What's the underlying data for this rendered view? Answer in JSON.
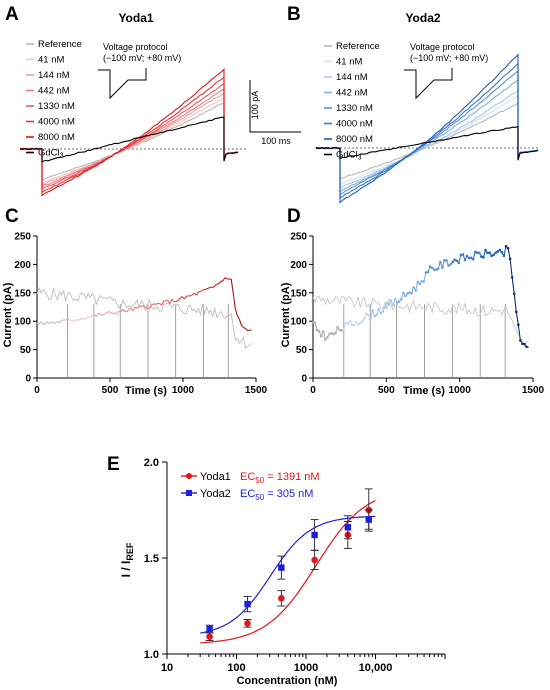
{
  "panel_labels": {
    "A": "A",
    "B": "B",
    "C": "C",
    "D": "D",
    "E": "E"
  },
  "colors": {
    "yoda1_dark": "#e3141b",
    "yoda1_light": "#f6b9bb",
    "yoda2_dark": "#1f5fb8",
    "yoda2_light": "#bcd6f2",
    "reference": "#b7b7b7",
    "gdcl3": "#000000",
    "fit_yoda1": "#e3141b",
    "fit_yoda2": "#1d1de0"
  },
  "chart_data": [
    {
      "panel": "A",
      "type": "line",
      "title": "Yoda1",
      "legend": [
        {
          "label": "Reference",
          "color": "#b7b7b7"
        },
        {
          "label": "41 nM",
          "color": "#f6c4c5"
        },
        {
          "label": "144 nM",
          "color": "#f2a1a3"
        },
        {
          "label": "442 nM",
          "color": "#ee7f82"
        },
        {
          "label": "1330 nM",
          "color": "#ea5b5f"
        },
        {
          "label": "4000 nM",
          "color": "#e6373c"
        },
        {
          "label": "8000 nM",
          "color": "#e3141b"
        },
        {
          "label": "GdCl3",
          "color": "#000000",
          "subscript": "3",
          "base": "GdCl"
        }
      ],
      "protocol_title": "Voltage protocol",
      "protocol_range": "(−100 mV; +80 mV)",
      "scalebar_y": "100 pA",
      "scalebar_x": "100 ms",
      "end_currents_pA": {
        "Reference": 145,
        "41 nM": 160,
        "144 nM": 175,
        "442 nM": 188,
        "1330 nM": 205,
        "4000 nM": 225,
        "8000 nM": 250,
        "GdCl3": 100
      },
      "start_currents_pA": {
        "Reference": -95,
        "41 nM": -105,
        "144 nM": -112,
        "442 nM": -118,
        "1330 nM": -125,
        "4000 nM": -135,
        "8000 nM": -145,
        "GdCl3": -40
      }
    },
    {
      "panel": "B",
      "type": "line",
      "title": "Yoda2",
      "legend": [
        {
          "label": "Reference",
          "color": "#b7b7b7"
        },
        {
          "label": "41 nM",
          "color": "#cfe0f5"
        },
        {
          "label": "144 nM",
          "color": "#a9c8ec"
        },
        {
          "label": "442 nM",
          "color": "#85afe0"
        },
        {
          "label": "1330 nM",
          "color": "#5b92d3"
        },
        {
          "label": "4000 nM",
          "color": "#3a77c4"
        },
        {
          "label": "8000 nM",
          "color": "#1f5fb8"
        },
        {
          "label": "GdCl3",
          "color": "#000000",
          "subscript": "3",
          "base": "GdCl"
        }
      ],
      "protocol_title": "Voltage protocol",
      "protocol_range": "(−100 mV; +80 mV)",
      "end_currents_pA": {
        "Reference": 125,
        "41 nM": 145,
        "144 nM": 160,
        "442 nM": 190,
        "1330 nM": 215,
        "4000 nM": 235,
        "8000 nM": 260,
        "GdCl3": 60
      },
      "start_currents_pA": {
        "Reference": -85,
        "41 nM": -100,
        "144 nM": -110,
        "442 nM": -120,
        "1330 nM": -128,
        "4000 nM": -138,
        "8000 nM": -150,
        "GdCl3": -28
      }
    },
    {
      "panel": "C",
      "type": "line",
      "xlabel": "Time (s)",
      "ylabel": "Current (pA)",
      "xlim": [
        0,
        1500
      ],
      "ylim": [
        0,
        250
      ],
      "xticks": [
        "0",
        "500",
        "1000",
        "1500"
      ],
      "yticks": [
        "0",
        "50",
        "100",
        "150",
        "200",
        "250"
      ],
      "application_times_s": [
        210,
        390,
        570,
        760,
        950,
        1140,
        1310
      ],
      "outward_pA": [
        [
          0,
          95
        ],
        [
          200,
          100
        ],
        [
          400,
          110
        ],
        [
          600,
          118
        ],
        [
          800,
          128
        ],
        [
          1000,
          140
        ],
        [
          1200,
          158
        ],
        [
          1260,
          170
        ],
        [
          1300,
          178
        ],
        [
          1330,
          172
        ],
        [
          1360,
          120
        ],
        [
          1400,
          92
        ],
        [
          1450,
          82
        ],
        [
          1480,
          82
        ]
      ],
      "inward_pA": [
        [
          0,
          150
        ],
        [
          200,
          145
        ],
        [
          400,
          138
        ],
        [
          600,
          130
        ],
        [
          800,
          128
        ],
        [
          1000,
          122
        ],
        [
          1200,
          118
        ],
        [
          1260,
          115
        ],
        [
          1300,
          113
        ],
        [
          1330,
          110
        ],
        [
          1360,
          75
        ],
        [
          1400,
          65
        ],
        [
          1450,
          60
        ],
        [
          1480,
          60
        ]
      ]
    },
    {
      "panel": "D",
      "type": "line",
      "xlabel": "Time (s)",
      "ylabel": "Current (pA)",
      "xlim": [
        0,
        1500
      ],
      "ylim": [
        0,
        250
      ],
      "xticks": [
        "0",
        "500",
        "1000",
        "1500"
      ],
      "yticks": [
        "0",
        "50",
        "100",
        "150",
        "200",
        "250"
      ],
      "application_times_s": [
        210,
        390,
        570,
        760,
        950,
        1140,
        1310
      ],
      "outward_pA": [
        [
          0,
          95
        ],
        [
          50,
          80
        ],
        [
          100,
          72
        ],
        [
          200,
          88
        ],
        [
          300,
          100
        ],
        [
          400,
          112
        ],
        [
          500,
          125
        ],
        [
          600,
          140
        ],
        [
          700,
          160
        ],
        [
          800,
          190
        ],
        [
          900,
          202
        ],
        [
          1000,
          210
        ],
        [
          1100,
          215
        ],
        [
          1200,
          220
        ],
        [
          1300,
          218
        ],
        [
          1330,
          232
        ],
        [
          1380,
          130
        ],
        [
          1420,
          58
        ],
        [
          1460,
          52
        ],
        [
          1480,
          50
        ]
      ],
      "inward_pA": [
        [
          0,
          140
        ],
        [
          200,
          135
        ],
        [
          400,
          130
        ],
        [
          600,
          128
        ],
        [
          800,
          125
        ],
        [
          1000,
          122
        ],
        [
          1200,
          118
        ],
        [
          1300,
          120
        ],
        [
          1330,
          118
        ],
        [
          1380,
          80
        ],
        [
          1420,
          62
        ],
        [
          1460,
          60
        ],
        [
          1480,
          58
        ]
      ]
    },
    {
      "panel": "E",
      "type": "scatter",
      "xlabel": "Concentration (nM)",
      "ylabel": "I / I",
      "ylabel_sub": "REF",
      "xscale": "log",
      "xlim": [
        10,
        100000
      ],
      "ylim": [
        1.0,
        2.0
      ],
      "xticks": [
        "10",
        "100",
        "1000",
        "10,000"
      ],
      "yticks": [
        "1.0",
        "1.5",
        "2.0"
      ],
      "x": [
        41,
        144,
        442,
        1330,
        4000,
        8000
      ],
      "series": [
        {
          "name": "Yoda1",
          "ec50_label": "EC",
          "ec50_sub": "50",
          "ec50_value": " = 1391 nM",
          "ec50": 1391,
          "color": "#e3141b",
          "marker": "circle",
          "bottom": 1.05,
          "top": 1.87,
          "hill": 1.2,
          "values": [
            1.09,
            1.16,
            1.29,
            1.49,
            1.62,
            1.75
          ],
          "errors": [
            0.02,
            0.02,
            0.04,
            0.05,
            0.07,
            0.11
          ]
        },
        {
          "name": "Yoda2",
          "ec50_label": "EC",
          "ec50_sub": "50",
          "ec50_value": " = 305 nM",
          "ec50": 305,
          "color": "#1d1de0",
          "marker": "square",
          "bottom": 1.09,
          "top": 1.72,
          "hill": 1.5,
          "values": [
            1.13,
            1.26,
            1.45,
            1.62,
            1.66,
            1.7
          ],
          "errors": [
            0.02,
            0.04,
            0.06,
            0.08,
            0.06,
            0.05
          ]
        }
      ]
    }
  ]
}
